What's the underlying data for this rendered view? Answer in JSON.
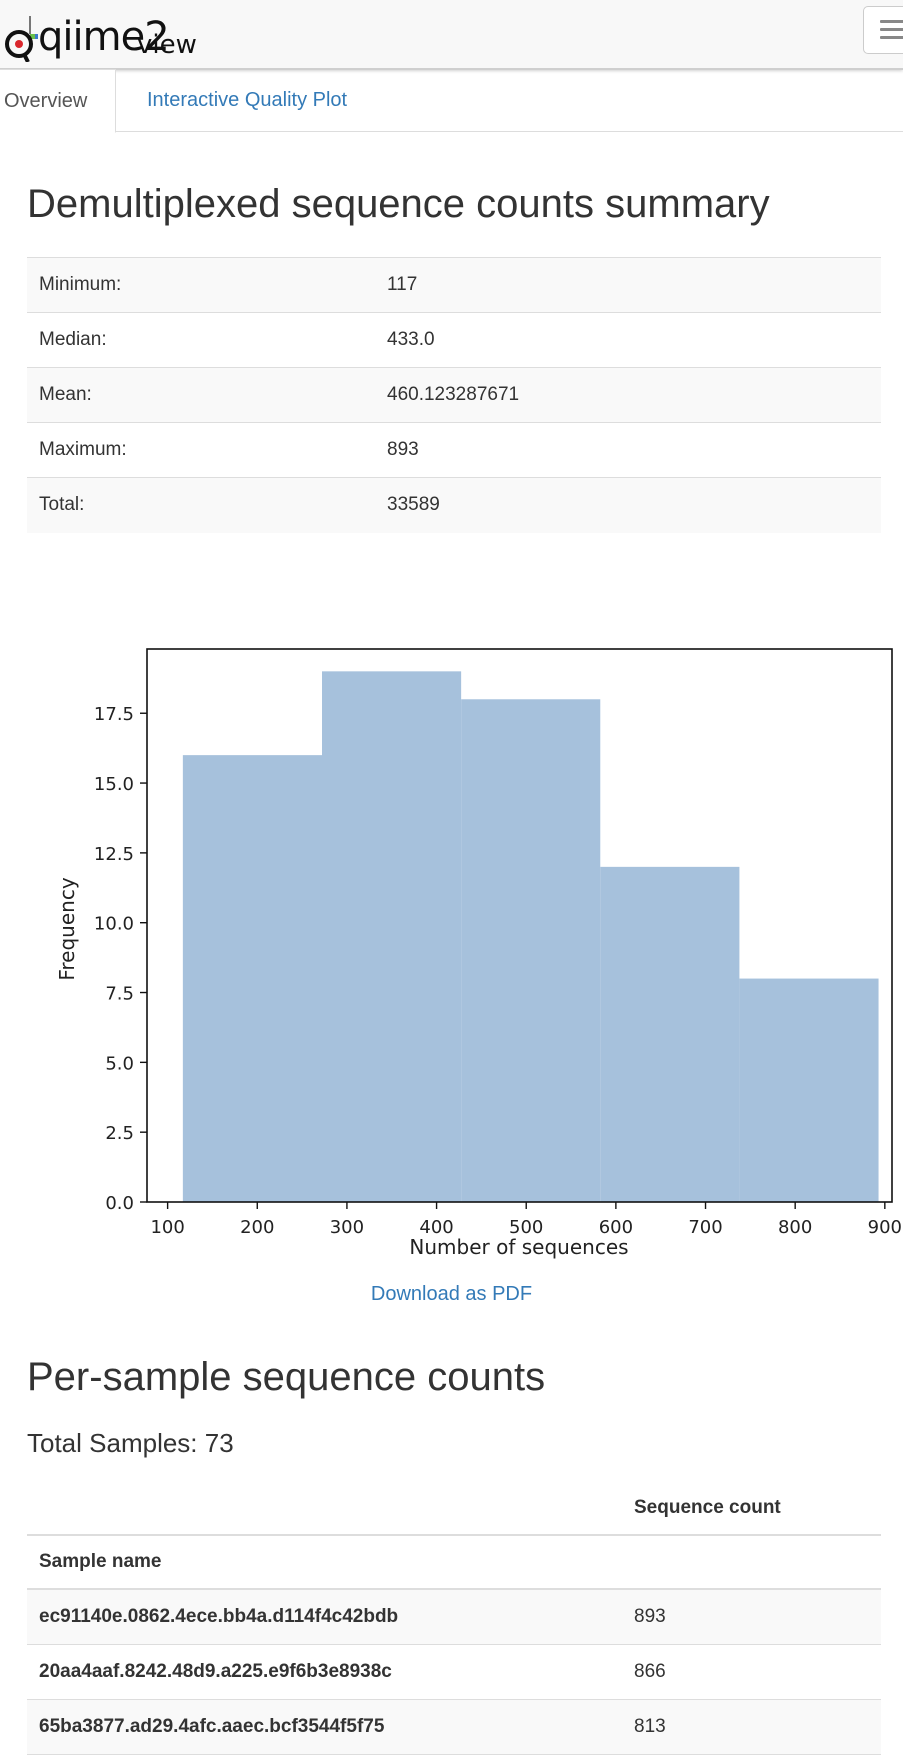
{
  "app": {
    "logo_main": "qiime2",
    "logo_sub": "view"
  },
  "tabs": [
    {
      "label": "Overview"
    },
    {
      "label": "Interactive Quality Plot"
    }
  ],
  "summary": {
    "title": "Demultiplexed sequence counts summary",
    "rows": [
      {
        "label": "Minimum:",
        "value": "117"
      },
      {
        "label": "Median:",
        "value": "433.0"
      },
      {
        "label": "Mean:",
        "value": "460.123287671"
      },
      {
        "label": "Maximum:",
        "value": "893"
      },
      {
        "label": "Total:",
        "value": "33589"
      }
    ]
  },
  "chart_data": {
    "type": "bar",
    "bins": [
      [
        117,
        272.2
      ],
      [
        272.2,
        427.4
      ],
      [
        427.4,
        582.6
      ],
      [
        582.6,
        737.8
      ],
      [
        737.8,
        893
      ]
    ],
    "values": [
      16,
      19,
      18,
      12,
      8
    ],
    "xlabel": "Number of sequences",
    "ylabel": "Frequency",
    "xlim": [
      77,
      908
    ],
    "ylim": [
      0,
      19.8
    ],
    "xticks": [
      100,
      200,
      300,
      400,
      500,
      600,
      700,
      800,
      900
    ],
    "yticks": [
      0.0,
      2.5,
      5.0,
      7.5,
      10.0,
      12.5,
      15.0,
      17.5
    ],
    "bar_color": "#a6c1dc",
    "grid": false
  },
  "download_label": "Download as PDF",
  "samples": {
    "title": "Per-sample sequence counts",
    "total_label": "Total Samples: 73",
    "col_count": "Sequence count",
    "col_name": "Sample name",
    "rows": [
      {
        "name": "ec91140e.0862.4ece.bb4a.d114f4c42bdb",
        "count": "893"
      },
      {
        "name": "20aa4aaf.8242.48d9.a225.e9f6b3e8938c",
        "count": "866"
      },
      {
        "name": "65ba3877.ad29.4afc.aaec.bcf3544f5f75",
        "count": "813"
      }
    ]
  },
  "colors": {
    "link": "#337ab7",
    "navbar_bg": "#f8f8f8"
  }
}
